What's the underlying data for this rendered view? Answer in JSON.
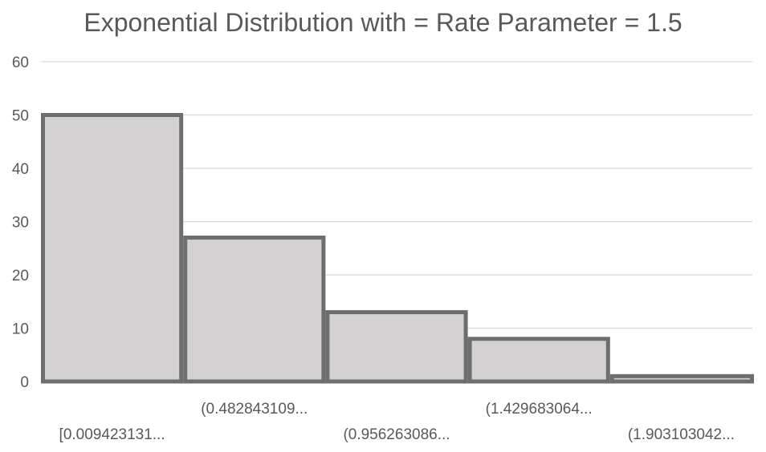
{
  "chart_data": {
    "type": "bar",
    "title": "Exponential Distribution with = Rate Parameter = 1.5",
    "xlabel": "",
    "ylabel": "",
    "categories": [
      "[0.009423131...",
      "(0.482843109...",
      "(0.956263086...",
      "(1.429683064...",
      "(1.903103042..."
    ],
    "values": [
      50,
      27,
      13,
      8,
      1
    ],
    "ylim": [
      0,
      60
    ],
    "yticks": [
      0,
      10,
      20,
      30,
      40,
      50,
      60
    ],
    "grid": true,
    "legend": "none",
    "colors": {
      "bar_fill": "#d3d1d2",
      "bar_stroke": "#6e6e6e",
      "grid": "#d9d9d9",
      "text": "#595959"
    }
  }
}
